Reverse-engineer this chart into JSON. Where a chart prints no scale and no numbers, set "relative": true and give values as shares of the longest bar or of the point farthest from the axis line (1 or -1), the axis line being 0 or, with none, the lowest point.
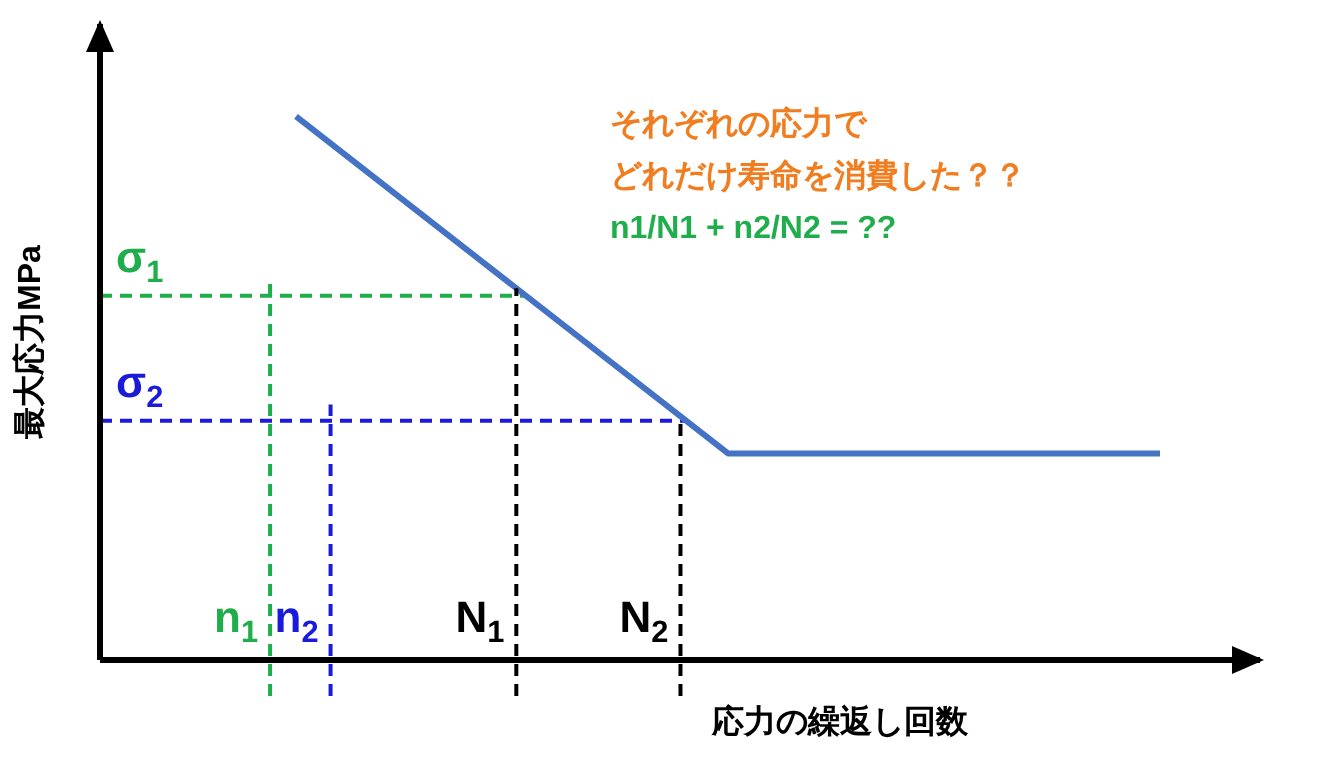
{
  "chart_data": {
    "type": "line",
    "relative": true,
    "xlabel": "応力の繰返し回数",
    "ylabel": "最大応力MPa",
    "categories": [
      null,
      null,
      null
    ],
    "series": [
      {
        "color": "#4472c4",
        "values": [
          1,
          0.38,
          0.38
        ]
      }
    ],
    "ref_lines": [
      {
        "axis": "y",
        "value": 0.67,
        "label": "σ$_{1}$",
        "color": "#1fae4b",
        "line_style": "dashed"
      },
      {
        "axis": "y",
        "value": 0.44,
        "label": "σ$_{2}$",
        "color": "#1a1adb",
        "line_style": "dashed"
      }
    ],
    "annotations": [
      "それぞれの応力で",
      "どれだけ寿命を消費した？？",
      "n1/N1 + n2/N2 = ??",
      "n$_{1}$",
      "n$_{2}$",
      "N$_{1}$",
      "N$_{2}$"
    ]
  }
}
